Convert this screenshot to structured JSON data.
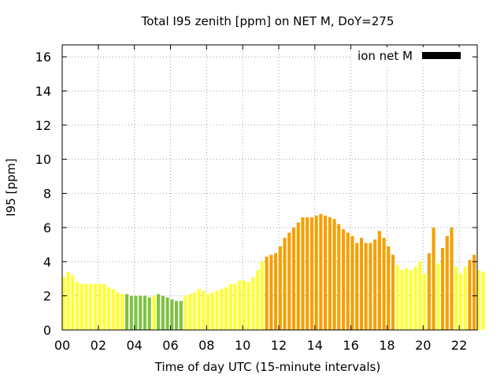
{
  "chart_data": {
    "type": "bar",
    "title": "Total I95 zenith [ppm] on NET M, DoY=275",
    "xlabel": "Time of day UTC (15-minute intervals)",
    "ylabel": "I95 [ppm]",
    "xlim": [
      0,
      23
    ],
    "ylim": [
      0,
      16.7
    ],
    "x_ticks": [
      "00",
      "02",
      "04",
      "06",
      "08",
      "10",
      "12",
      "14",
      "16",
      "18",
      "20",
      "22"
    ],
    "y_ticks": [
      "0",
      "2",
      "4",
      "6",
      "8",
      "10",
      "12",
      "14",
      "16"
    ],
    "grid": true,
    "legend": {
      "label": "ion net M",
      "color": "#000000",
      "position": "top-right"
    },
    "colors": {
      "green": "#7ec242",
      "yellow": "#ffff33",
      "orange": "#f5a000"
    },
    "bar_interval_hours": 0.25,
    "values": [
      3.1,
      3.4,
      3.2,
      2.8,
      2.7,
      2.7,
      2.7,
      2.7,
      2.7,
      2.7,
      2.5,
      2.4,
      2.2,
      2.1,
      2.1,
      2.0,
      2.0,
      2.0,
      2.0,
      1.9,
      2.0,
      2.1,
      2.0,
      1.9,
      1.8,
      1.7,
      1.7,
      2.0,
      2.1,
      2.2,
      2.4,
      2.3,
      2.1,
      2.2,
      2.3,
      2.4,
      2.5,
      2.7,
      2.7,
      2.9,
      2.9,
      2.8,
      3.1,
      3.5,
      4.0,
      4.3,
      4.4,
      4.5,
      4.9,
      5.4,
      5.7,
      6.0,
      6.3,
      6.6,
      6.6,
      6.6,
      6.7,
      6.8,
      6.7,
      6.6,
      6.5,
      6.2,
      5.9,
      5.7,
      5.5,
      5.1,
      5.4,
      5.1,
      5.1,
      5.3,
      5.8,
      5.4,
      4.9,
      4.4,
      3.8,
      3.5,
      3.6,
      3.5,
      3.7,
      4.0,
      3.3,
      4.5,
      6.0,
      3.9,
      4.8,
      5.5,
      6.0,
      3.7,
      3.3,
      3.7,
      4.1,
      4.4,
      3.5,
      3.4
    ],
    "bar_colors": [
      "yellow",
      "yellow",
      "yellow",
      "yellow",
      "yellow",
      "yellow",
      "yellow",
      "yellow",
      "yellow",
      "yellow",
      "yellow",
      "yellow",
      "yellow",
      "yellow",
      "green",
      "green",
      "green",
      "green",
      "green",
      "green",
      "yellow",
      "green",
      "green",
      "green",
      "green",
      "green",
      "green",
      "yellow",
      "yellow",
      "yellow",
      "yellow",
      "yellow",
      "yellow",
      "yellow",
      "yellow",
      "yellow",
      "yellow",
      "yellow",
      "yellow",
      "yellow",
      "yellow",
      "yellow",
      "yellow",
      "yellow",
      "yellow",
      "orange",
      "orange",
      "orange",
      "orange",
      "orange",
      "orange",
      "orange",
      "orange",
      "orange",
      "orange",
      "orange",
      "orange",
      "orange",
      "orange",
      "orange",
      "orange",
      "orange",
      "orange",
      "orange",
      "orange",
      "orange",
      "orange",
      "orange",
      "orange",
      "orange",
      "orange",
      "orange",
      "orange",
      "orange",
      "yellow",
      "yellow",
      "yellow",
      "yellow",
      "yellow",
      "yellow",
      "yellow",
      "orange",
      "orange",
      "yellow",
      "orange",
      "orange",
      "orange",
      "yellow",
      "yellow",
      "yellow",
      "orange",
      "orange",
      "yellow",
      "yellow"
    ]
  }
}
